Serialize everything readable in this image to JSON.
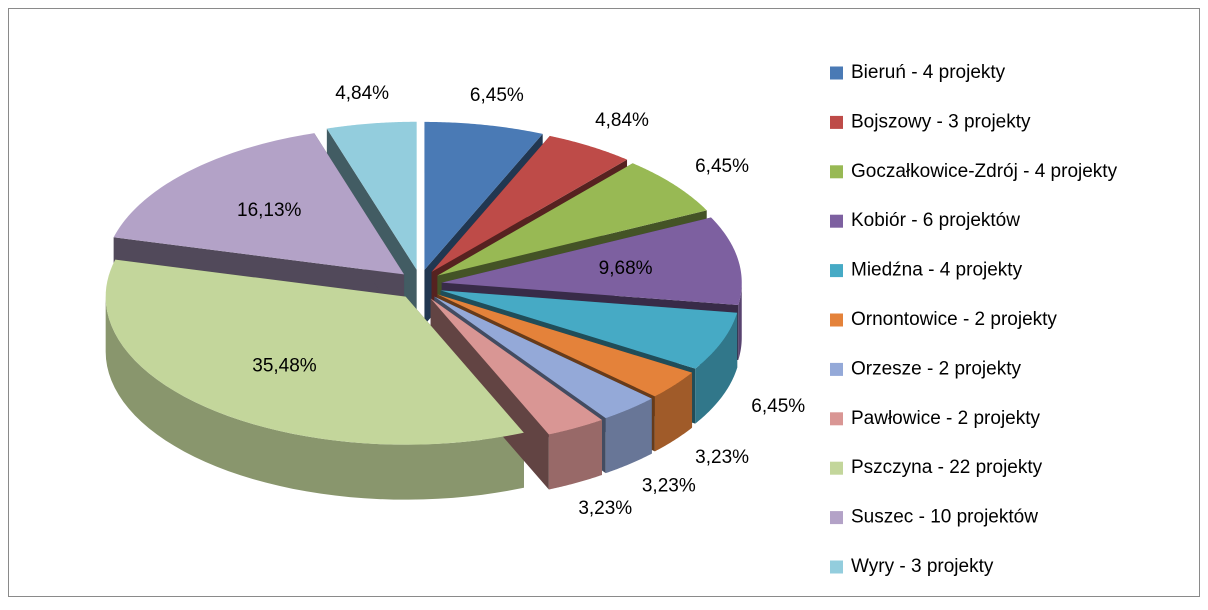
{
  "chart_data": {
    "type": "pie",
    "categories": [
      "Bieruń - 4 projekty",
      "Bojszowy - 3 projekty",
      "Goczałkowice-Zdrój - 4 projekty",
      "Kobiór - 6 projektów",
      "Miedźna - 4 projekty",
      "Ornontowice - 2 projekty",
      "Orzesze - 2 projekty",
      "Pawłowice - 2 projekty",
      "Pszczyna - 22 projekty",
      "Suszec - 10 projektów",
      "Wyry - 3 projekty"
    ],
    "values": [
      6.45,
      4.84,
      6.45,
      9.68,
      6.45,
      3.23,
      3.23,
      3.23,
      35.48,
      16.13,
      4.84
    ],
    "value_labels": [
      "6,45%",
      "4,84%",
      "6,45%",
      "9,68%",
      "6,45%",
      "3,23%",
      "3,23%",
      "3,23%",
      "35,48%",
      "16,13%",
      "4,84%"
    ],
    "colors": [
      "#4a7ab5",
      "#be4b48",
      "#98b954",
      "#7d60a0",
      "#46aac5",
      "#e4823a",
      "#94a9d8",
      "#d99694",
      "#c3d69b",
      "#b3a2c7",
      "#93cddd"
    ],
    "legend": "right"
  }
}
